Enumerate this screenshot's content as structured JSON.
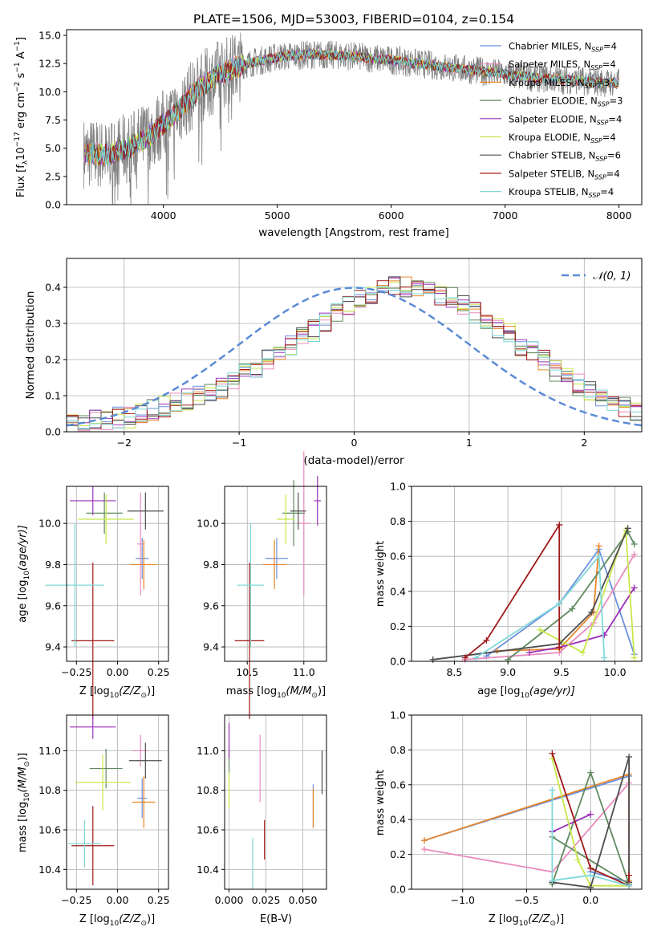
{
  "title": "PLATE=1506, MJD=53003, FIBERID=0104, z=0.154",
  "colors": {
    "chabrier_miles": "#6a8fdc",
    "salpeter_miles": "#e88bbf",
    "kroupa_miles": "#e8862a",
    "chabrier_elodie": "#5e8a5e",
    "salpeter_elodie": "#9b30b8",
    "kroupa_elodie": "#c8e84a",
    "chabrier_stelib": "#4d4d4d",
    "salpeter_stelib": "#a01818",
    "kroupa_stelib": "#7fd8d8",
    "data": "#808080",
    "normal": "#5b8bd6"
  },
  "chart_data": [
    {
      "type": "line",
      "title": "PLATE=1506, MJD=53003, FIBERID=0104, z=0.154",
      "xlabel": "wavelength [Angstrom, rest frame]",
      "ylabel": "Flux [f",
      "ylabel_sub": "λ",
      "ylabel_mid": "10",
      "ylabel_sup1": "−17",
      "ylabel_mid2": " erg cm",
      "ylabel_sup2": "−2",
      "ylabel_mid3": " s",
      "ylabel_sup3": "−1",
      "ylabel_mid4": " A",
      "ylabel_sup4": "−1",
      "ylabel_end": "]",
      "xlim": [
        3150,
        8200
      ],
      "ylim": [
        0,
        15.5
      ],
      "xticks": [
        "4000",
        "5000",
        "6000",
        "7000",
        "8000"
      ],
      "yticks": [
        "0.0",
        "2.5",
        "5.0",
        "7.5",
        "10.0",
        "12.5",
        "15.0"
      ],
      "legend": "top-right",
      "series": [
        {
          "name": "Chabrier MILES, N",
          "sub": "SSP",
          "tail": "=4"
        },
        {
          "name": "Salpeter MILES, N",
          "sub": "SSP",
          "tail": "=4"
        },
        {
          "name": "Kroupa MILES, N",
          "sub": "SSP",
          "tail": "=3"
        },
        {
          "name": "Chabrier ELODIE, N",
          "sub": "SSP",
          "tail": "=3"
        },
        {
          "name": "Salpeter ELODIE, N",
          "sub": "SSP",
          "tail": "=4"
        },
        {
          "name": "Kroupa ELODIE, N",
          "sub": "SSP",
          "tail": "=4"
        },
        {
          "name": "Chabrier STELIB, N",
          "sub": "SSP",
          "tail": "=6"
        },
        {
          "name": "Salpeter STELIB, N",
          "sub": "SSP",
          "tail": "=4"
        },
        {
          "name": "Kroupa STELIB, N",
          "sub": "SSP",
          "tail": "=4"
        }
      ],
      "continuum": {
        "x": [
          3300,
          3500,
          3700,
          3900,
          4100,
          4300,
          4500,
          4700,
          5000,
          5300,
          5600,
          6000,
          6400,
          6800,
          7200,
          7600,
          7900
        ],
        "y": [
          4.6,
          4.4,
          5.0,
          6.3,
          8.0,
          10.2,
          11.6,
          12.4,
          13.1,
          13.3,
          13.2,
          12.8,
          12.3,
          11.8,
          11.3,
          11.0,
          10.8
        ]
      }
    },
    {
      "type": "bar",
      "xlabel": "(data-model)/error",
      "ylabel": "Normed distribution",
      "xlim": [
        -2.5,
        2.5
      ],
      "ylim": [
        0,
        0.48
      ],
      "xticks": [
        "−2",
        "−1",
        "0",
        "1",
        "2"
      ],
      "yticks": [
        "0.0",
        "0.1",
        "0.2",
        "0.3",
        "0.4"
      ],
      "legend_label": "𝒩(0, 1)",
      "bin_width": 0.1,
      "bins_start": -2.5,
      "histogram": [
        0.02,
        0.02,
        0.03,
        0.03,
        0.04,
        0.04,
        0.05,
        0.06,
        0.07,
        0.08,
        0.09,
        0.1,
        0.11,
        0.12,
        0.14,
        0.16,
        0.18,
        0.2,
        0.22,
        0.24,
        0.26,
        0.28,
        0.3,
        0.33,
        0.35,
        0.37,
        0.38,
        0.39,
        0.4,
        0.4,
        0.4,
        0.39,
        0.38,
        0.37,
        0.35,
        0.33,
        0.31,
        0.29,
        0.27,
        0.24,
        0.22,
        0.2,
        0.17,
        0.15,
        0.13,
        0.11,
        0.09,
        0.08,
        0.07,
        0.05
      ]
    },
    {
      "type": "scatter",
      "xlabel": "Z [log",
      "xlabel_sub": "10",
      "xlabel_tail": "(Z/Z",
      "xlabel_sub2": "⊙",
      "xlabel_end": ")]",
      "ylabel": "age  [log",
      "ylabel_sub": "10",
      "ylabel_tail": "(age/yr)]",
      "xlim": [
        -0.31,
        0.31
      ],
      "ylim": [
        9.33,
        10.18
      ],
      "xticks": [
        "−0.25",
        "0.00",
        "0.25"
      ],
      "yticks": [
        "9.4",
        "9.6",
        "9.8",
        "10.0"
      ],
      "points": [
        {
          "x": 0.15,
          "y": 9.83,
          "xerr": 0.04,
          "yerr": 0.1
        },
        {
          "x": 0.14,
          "y": 9.9,
          "xerr": 0.02,
          "yerr": 0.25
        },
        {
          "x": 0.16,
          "y": 9.8,
          "xerr": 0.08,
          "yerr": 0.12
        },
        {
          "x": -0.08,
          "y": 10.05,
          "xerr": 0.11,
          "yerr": 0.1
        },
        {
          "x": -0.15,
          "y": 10.11,
          "xerr": 0.14,
          "yerr": 0.07
        },
        {
          "x": -0.07,
          "y": 10.02,
          "xerr": 0.17,
          "yerr": 0.12
        },
        {
          "x": 0.17,
          "y": 10.06,
          "xerr": 0.11,
          "yerr": 0.09
        },
        {
          "x": -0.15,
          "y": 9.43,
          "xerr": 0.13,
          "yerr": 0.38
        },
        {
          "x": -0.26,
          "y": 9.7,
          "xerr": 0.18,
          "yerr": 0.3
        }
      ]
    },
    {
      "type": "scatter",
      "xlabel": "mass [log",
      "xlabel_sub": "10",
      "xlabel_tail": "(M/M",
      "xlabel_sub2": "⊙",
      "xlabel_end": ")]",
      "xlim": [
        10.3,
        11.2
      ],
      "ylim": [
        9.33,
        10.18
      ],
      "xticks": [
        "10.5",
        "11.0"
      ],
      "yticks": [
        "9.4",
        "9.6",
        "9.8",
        "10.0"
      ],
      "points": [
        {
          "x": 10.76,
          "y": 9.83,
          "xerr": 0.1,
          "yerr": 0.1
        },
        {
          "x": 11.0,
          "y": 10.0,
          "xerr": 0.05,
          "yerr": 0.35
        },
        {
          "x": 10.74,
          "y": 9.8,
          "xerr": 0.1,
          "yerr": 0.12
        },
        {
          "x": 10.91,
          "y": 10.05,
          "xerr": 0.1,
          "yerr": 0.16
        },
        {
          "x": 11.12,
          "y": 10.11,
          "xerr": 0.03,
          "yerr": 0.12
        },
        {
          "x": 10.84,
          "y": 10.02,
          "xerr": 0.08,
          "yerr": 0.12
        },
        {
          "x": 10.95,
          "y": 10.06,
          "xerr": 0.07,
          "yerr": 0.09
        },
        {
          "x": 10.52,
          "y": 9.43,
          "xerr": 0.13,
          "yerr": 0.38
        },
        {
          "x": 10.53,
          "y": 9.7,
          "xerr": 0.12,
          "yerr": 0.3
        }
      ]
    },
    {
      "type": "line",
      "xlabel": "age  [log",
      "xlabel_sub": "10",
      "xlabel_tail": "(age/yr)]",
      "ylabel": "mass weight",
      "xlim": [
        8.1,
        10.25
      ],
      "ylim": [
        0,
        1.0
      ],
      "xticks": [
        "8.5",
        "9.0",
        "9.5",
        "10.0"
      ],
      "yticks": [
        "0.0",
        "0.2",
        "0.4",
        "0.6",
        "0.8",
        "1.0"
      ],
      "series": [
        {
          "x": [
            8.8,
            9.48,
            9.85,
            10.18
          ],
          "y": [
            0.03,
            0.33,
            0.64,
            0.04
          ]
        },
        {
          "x": [
            8.6,
            9.48,
            9.8,
            10.18
          ],
          "y": [
            0.01,
            0.05,
            0.22,
            0.61
          ]
        },
        {
          "x": [
            8.9,
            9.48,
            9.8,
            9.85
          ],
          "y": [
            0.06,
            0.07,
            0.28,
            0.66
          ]
        },
        {
          "x": [
            9.0,
            9.6,
            10.12,
            10.18
          ],
          "y": [
            0.01,
            0.3,
            0.74,
            0.67
          ]
        },
        {
          "x": [
            9.2,
            9.48,
            9.9,
            10.18
          ],
          "y": [
            0.05,
            0.08,
            0.15,
            0.42
          ]
        },
        {
          "x": [
            9.3,
            9.7,
            10.1,
            10.18
          ],
          "y": [
            0.18,
            0.05,
            0.75,
            0.02
          ]
        },
        {
          "x": [
            8.3,
            9.48,
            9.78,
            10.12
          ],
          "y": [
            0.01,
            0.1,
            0.28,
            0.76
          ]
        },
        {
          "x": [
            8.6,
            8.8,
            9.48,
            9.48
          ],
          "y": [
            0.02,
            0.12,
            0.78,
            0.08
          ]
        },
        {
          "x": [
            8.7,
            9.48,
            9.85,
            9.9
          ],
          "y": [
            0.02,
            0.33,
            0.6,
            0.02
          ]
        }
      ]
    },
    {
      "type": "scatter",
      "xlabel": "Z [log",
      "xlabel_sub": "10",
      "xlabel_tail": "(Z/Z",
      "xlabel_sub2": "⊙",
      "xlabel_end": ")]",
      "ylabel": "mass [log",
      "ylabel_sub": "10",
      "ylabel_tail": "(M/M",
      "ylabel_sub2": "⊙",
      "ylabel_end": ")]",
      "xlim": [
        -0.31,
        0.31
      ],
      "ylim": [
        10.3,
        11.18
      ],
      "xticks": [
        "−0.25",
        "0.00",
        "0.25"
      ],
      "yticks": [
        "10.4",
        "10.6",
        "10.8",
        "11.0"
      ],
      "points": [
        {
          "x": 0.15,
          "y": 10.76,
          "xerr": 0.03,
          "yerr": 0.1
        },
        {
          "x": 0.14,
          "y": 11.0,
          "xerr": 0.05,
          "yerr": 0.08
        },
        {
          "x": 0.16,
          "y": 10.74,
          "xerr": 0.07,
          "yerr": 0.13
        },
        {
          "x": -0.07,
          "y": 10.91,
          "xerr": 0.1,
          "yerr": 0.1
        },
        {
          "x": -0.15,
          "y": 11.12,
          "xerr": 0.14,
          "yerr": 0.06
        },
        {
          "x": -0.09,
          "y": 10.84,
          "xerr": 0.17,
          "yerr": 0.14
        },
        {
          "x": 0.17,
          "y": 10.95,
          "xerr": 0.1,
          "yerr": 0.09
        },
        {
          "x": -0.15,
          "y": 10.52,
          "xerr": 0.13,
          "yerr": 0.2
        },
        {
          "x": -0.2,
          "y": 10.53,
          "xerr": 0.1,
          "yerr": 0.12
        }
      ]
    },
    {
      "type": "scatter",
      "xlabel": "E(B-V)",
      "xlim": [
        -0.003,
        0.066
      ],
      "ylim": [
        10.3,
        11.18
      ],
      "xticks": [
        "0.000",
        "0.025",
        "0.050"
      ],
      "yticks": [
        "10.4",
        "10.6",
        "10.8",
        "11.0"
      ],
      "points": [
        {
          "x": 0.057,
          "y": 10.72,
          "xerr": 0,
          "yerr": 0.11
        },
        {
          "x": 0.021,
          "y": 10.91,
          "xerr": 0,
          "yerr": 0.17
        },
        {
          "x": 0.057,
          "y": 10.71,
          "xerr": 0,
          "yerr": 0.1
        },
        {
          "x": 0.0,
          "y": 10.96,
          "xerr": 0,
          "yerr": 0.07
        },
        {
          "x": 0.0,
          "y": 11.05,
          "xerr": 0,
          "yerr": 0.09
        },
        {
          "x": 0.0,
          "y": 10.8,
          "xerr": 0,
          "yerr": 0.09
        },
        {
          "x": 0.063,
          "y": 10.89,
          "xerr": 0,
          "yerr": 0.11
        },
        {
          "x": 0.024,
          "y": 10.55,
          "xerr": 0,
          "yerr": 0.1
        },
        {
          "x": 0.016,
          "y": 10.43,
          "xerr": 0,
          "yerr": 0.13
        }
      ]
    },
    {
      "type": "line",
      "xlabel": "Z [log",
      "xlabel_sub": "10",
      "xlabel_tail": "(Z/Z",
      "xlabel_sub2": "⊙",
      "xlabel_end": ")]",
      "ylabel": "mass weight",
      "xlim": [
        -1.4,
        0.4
      ],
      "ylim": [
        0,
        1.0
      ],
      "xticks": [
        "−1.0",
        "−0.5",
        "0.0"
      ],
      "yticks": [
        "0.0",
        "0.2",
        "0.4",
        "0.6",
        "0.8",
        "1.0"
      ],
      "series": [
        {
          "x": [
            -1.3,
            0.3,
            0.3,
            0.0
          ],
          "y": [
            0.28,
            0.65,
            0.04,
            0.1
          ]
        },
        {
          "x": [
            -1.3,
            -0.3,
            0.3,
            0.3
          ],
          "y": [
            0.23,
            0.1,
            0.61,
            0.04
          ]
        },
        {
          "x": [
            -1.3,
            0.3,
            0.3,
            0.3
          ],
          "y": [
            0.28,
            0.66,
            0.05,
            0.02
          ]
        },
        {
          "x": [
            -0.3,
            0.0,
            0.3,
            -0.3
          ],
          "y": [
            0.03,
            0.67,
            0.03,
            0.3
          ]
        },
        {
          "x": [
            -0.3,
            -0.3,
            0.0,
            -0.3
          ],
          "y": [
            0.33,
            0.33,
            0.43,
            0.33
          ]
        },
        {
          "x": [
            -0.3,
            -0.1,
            0.0,
            0.3
          ],
          "y": [
            0.75,
            0.17,
            0.02,
            0.02
          ]
        },
        {
          "x": [
            -0.3,
            0.0,
            0.3,
            0.3
          ],
          "y": [
            0.04,
            0.01,
            0.76,
            0.04
          ]
        },
        {
          "x": [
            -0.3,
            0.0,
            0.3,
            0.3
          ],
          "y": [
            0.78,
            0.12,
            0.02,
            0.08
          ]
        },
        {
          "x": [
            -0.3,
            -0.3,
            0.0,
            0.3
          ],
          "y": [
            0.57,
            0.05,
            0.08,
            0.02
          ]
        }
      ]
    }
  ]
}
